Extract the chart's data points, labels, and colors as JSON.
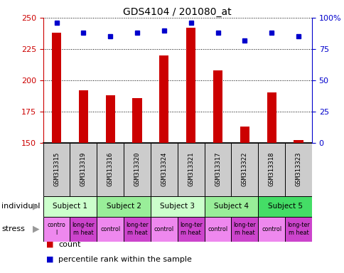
{
  "title": "GDS4104 / 201080_at",
  "samples": [
    "GSM313315",
    "GSM313319",
    "GSM313316",
    "GSM313320",
    "GSM313324",
    "GSM313321",
    "GSM313317",
    "GSM313322",
    "GSM313318",
    "GSM313323"
  ],
  "counts": [
    238,
    192,
    188,
    186,
    220,
    242,
    208,
    163,
    190,
    152
  ],
  "percentiles": [
    96,
    88,
    85,
    88,
    90,
    96,
    88,
    82,
    88,
    85
  ],
  "stress_labels": [
    "contro\nl",
    "long-ter\nm heat",
    "control",
    "long-ter\nm heat",
    "contro\nl",
    "long-ter\nm heat",
    "control",
    "long-ter\nm heat",
    "control",
    "long-ter\nm heat"
  ],
  "subject_list": [
    "Subject 1",
    "Subject 2",
    "Subject 3",
    "Subject 4",
    "Subject 5"
  ],
  "subject_colors": [
    "#ccffcc",
    "#99ee99",
    "#ccffcc",
    "#99ee99",
    "#44dd66"
  ],
  "stress_control_color": "#ee88ee",
  "stress_heat_color": "#cc44cc",
  "ylim_left": [
    150,
    250
  ],
  "ylim_right": [
    0,
    100
  ],
  "yticks_left": [
    150,
    175,
    200,
    225,
    250
  ],
  "yticks_right": [
    0,
    25,
    50,
    75,
    100
  ],
  "bar_color": "#cc0000",
  "dot_color": "#0000cc",
  "left_axis_color": "#cc0000",
  "right_axis_color": "#0000cc",
  "bar_width": 0.35,
  "gsm_bg": "#cccccc",
  "gsm_font_size": 6.5
}
